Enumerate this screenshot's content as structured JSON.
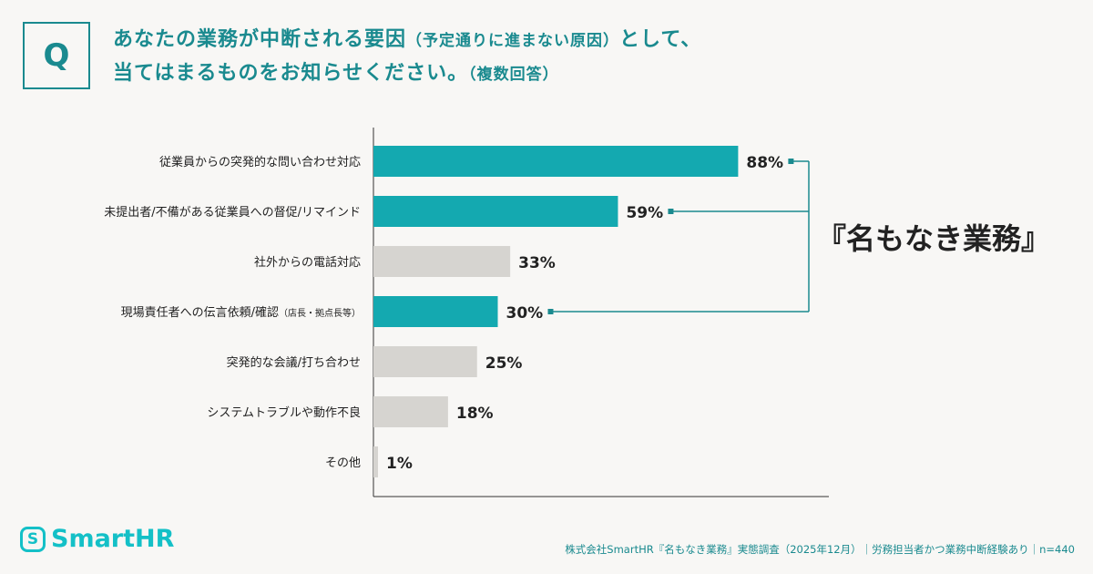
{
  "question_mark": "Q",
  "title": {
    "line1": "あなたの業務が中断される要因",
    "line1_paren": "（予定通りに進まない原因）",
    "line1_end": "として、",
    "line2": "当てはまるものをお知らせください。",
    "line2_paren": "（複数回答）"
  },
  "chart_data": {
    "type": "bar",
    "orientation": "horizontal",
    "categories": [
      "従業員からの突発的な問い合わせ対応",
      "未提出者/不備がある従業員への督促/リマインド",
      "社外からの電話対応",
      "現場責任者への伝言依頼/確認",
      "突発的な会議/打ち合わせ",
      "システムトラブルや動作不良",
      "その他"
    ],
    "category_suffix": [
      "",
      "",
      "",
      "（店長・拠点長等）",
      "",
      "",
      ""
    ],
    "values": [
      88,
      59,
      33,
      30,
      25,
      18,
      1
    ],
    "value_unit": "%",
    "highlighted": [
      true,
      true,
      false,
      true,
      false,
      false,
      false
    ],
    "xlim": [
      0,
      100
    ],
    "annotation": "『名もなき業務』",
    "colors": {
      "highlight": "#14a9b0",
      "normal": "#d6d4d0",
      "bracket": "#1a8a8f"
    }
  },
  "brand": {
    "name": "SmartHR",
    "logo_letter": "S"
  },
  "footer": "株式会社SmartHR『名もなき業務』実態調査（2025年12月）｜労務担当者かつ業務中断経験あり｜n=440"
}
